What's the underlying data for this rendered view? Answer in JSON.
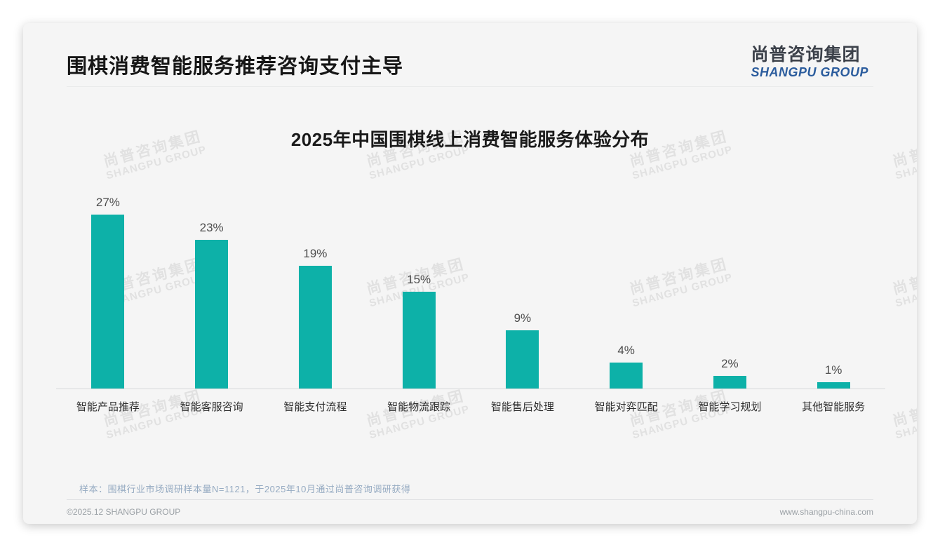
{
  "header": {
    "title": "围棋消费智能服务推荐咨询支付主导",
    "logo": {
      "chinese": "尚普咨询集团",
      "english": "SHANGPU GROUP"
    }
  },
  "watermark": {
    "line1": "尚普咨询集团",
    "line2": "SHANGPU GROUP"
  },
  "chart_data": {
    "type": "bar",
    "title": "2025年中国围棋线上消费智能服务体验分布",
    "categories": [
      "智能产品推荐",
      "智能客服咨询",
      "智能支付流程",
      "智能物流跟踪",
      "智能售后处理",
      "智能对弈匹配",
      "智能学习规划",
      "其他智能服务"
    ],
    "values": [
      27,
      23,
      19,
      15,
      9,
      4,
      2,
      1
    ],
    "value_labels": [
      "27%",
      "23%",
      "19%",
      "15%",
      "9%",
      "4%",
      "2%",
      "1%"
    ],
    "unit": "%",
    "bar_color": "#0db1a8",
    "ylim": [
      0,
      30
    ],
    "grid": false,
    "legend": "none",
    "xlabel": "",
    "ylabel": ""
  },
  "footnote": {
    "sample": "样本：围棋行业市场调研样本量N=1121，于2025年10月通过尚普咨询调研获得"
  },
  "footer": {
    "copyright": "©2025.12 SHANGPU GROUP",
    "website": "www.shangpu-china.com"
  }
}
